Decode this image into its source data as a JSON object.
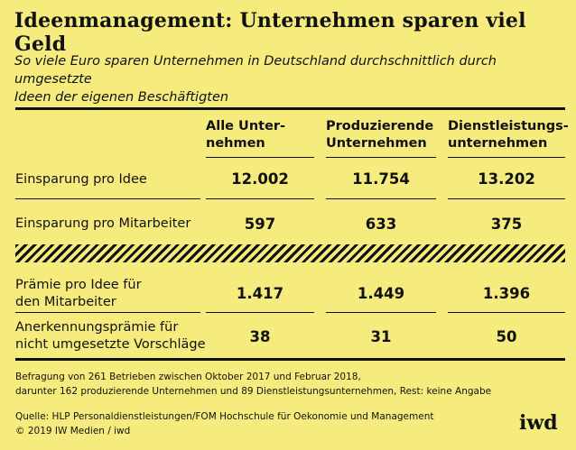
{
  "title": "Ideenmanagement: Unternehmen sparen viel Geld",
  "subtitle": {
    "line1": "So viele Euro sparen Unternehmen in Deutschland durchschnittlich durch umgesetzte",
    "line2": "Ideen der eigenen Beschäftigten"
  },
  "columns": [
    {
      "line1": "Alle Unter-",
      "line2": "nehmen"
    },
    {
      "line1": "Produzierende",
      "line2": "Unternehmen"
    },
    {
      "line1": "Dienstleistungs-",
      "line2": "unternehmen"
    }
  ],
  "rows": [
    {
      "label1": "Einsparung pro Idee",
      "label2": "",
      "values": [
        "12.002",
        "11.754",
        "13.202"
      ]
    },
    {
      "label1": "Einsparung pro Mitarbeiter",
      "label2": "",
      "values": [
        "597",
        "633",
        "375"
      ]
    },
    {
      "label1": "Prämie pro Idee für",
      "label2": "den Mitarbeiter",
      "values": [
        "1.417",
        "1.449",
        "1.396"
      ]
    },
    {
      "label1": "Anerkennungsprämie für",
      "label2": "nicht umgesetzte Vorschläge",
      "values": [
        "38",
        "31",
        "50"
      ]
    }
  ],
  "notes": {
    "line1": "Befragung von 261 Betrieben zwischen Oktober 2017 und Februar 2018,",
    "line2": "darunter 162 produzierende Unternehmen und 89 Dienstleistungsunternehmen, Rest: keine Angabe",
    "source": "Quelle: HLP Personaldienstleistungen/FOM Hochschule für Oekonomie und Management",
    "copyright": "© 2019 IW Medien / iwd"
  },
  "logo": "iwd"
}
